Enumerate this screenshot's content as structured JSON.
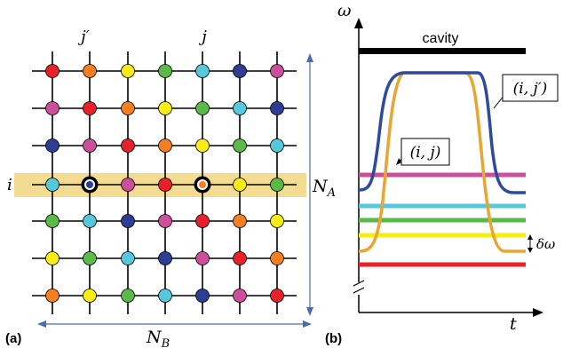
{
  "panel_a": {
    "tag": "(a)",
    "col_label_left": "j′",
    "col_label_right": "j",
    "row_label": "i",
    "dim_vertical": "N_A",
    "dim_vertical_main": "N",
    "dim_vertical_sub": "A",
    "dim_horizontal_main": "N",
    "dim_horizontal_sub": "B",
    "highlight_color": "#f3dc92",
    "palette": {
      "R": "#e8202a",
      "O": "#f57f20",
      "Y": "#f7ec13",
      "G": "#5ab947",
      "C": "#55c8dc",
      "M": "#cd4f9c",
      "B": "#2e3d94"
    },
    "grid": [
      [
        "R",
        "O",
        "Y",
        "G",
        "C",
        "B",
        "M"
      ],
      [
        "M",
        "R",
        "O",
        "Y",
        "G",
        "C",
        "B"
      ],
      [
        "B",
        "M",
        "R",
        "O",
        "Y",
        "G",
        "C"
      ],
      [
        "C",
        "B",
        "M",
        "R",
        "O",
        "Y",
        "G"
      ],
      [
        "G",
        "C",
        "B",
        "M",
        "R",
        "O",
        "Y"
      ],
      [
        "Y",
        "G",
        "C",
        "B",
        "M",
        "R",
        "O"
      ],
      [
        "O",
        "Y",
        "G",
        "C",
        "B",
        "M",
        "R"
      ]
    ],
    "highlighted_row": 3,
    "circled_nodes": [
      [
        3,
        1
      ],
      [
        3,
        4
      ]
    ]
  },
  "panel_b": {
    "tag": "(b)",
    "y_axis_label": "ω",
    "x_axis_label": "t",
    "cavity_label": "cavity",
    "curve_ij_label": "(i, j)",
    "curve_ijp_label": "(i, j′)",
    "delta_label": "δω",
    "levels": [
      {
        "color": "#cd4f9c"
      },
      {
        "color": "#55c8dc"
      },
      {
        "color": "#5ab947"
      },
      {
        "color": "#f7ec13"
      },
      {
        "color": "#e8202a"
      }
    ],
    "curve_ij_color": "#e8a530",
    "curve_ijp_color": "#2e4aa0",
    "cavity_color": "#000000"
  }
}
